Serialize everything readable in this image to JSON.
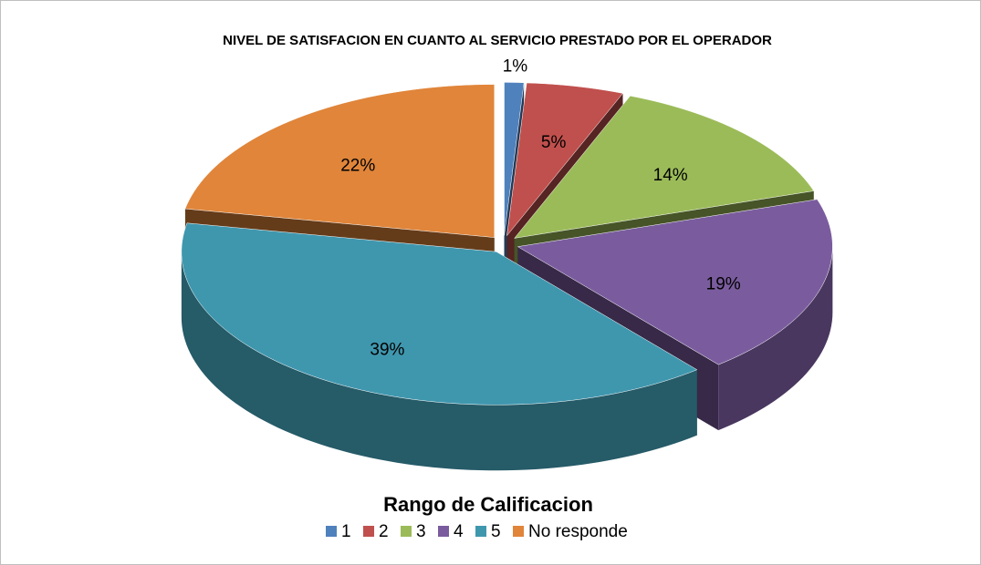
{
  "chart_data": {
    "type": "pie",
    "title": "NIVEL DE SATISFACION EN CUANTO AL SERVICIO PRESTADO POR EL OPERADOR",
    "legend_title": "Rango de Calificacion",
    "categories": [
      "1",
      "2",
      "3",
      "4",
      "5",
      "No responde"
    ],
    "values": [
      1,
      5,
      14,
      19,
      39,
      22
    ],
    "value_labels": [
      "1%",
      "5%",
      "14%",
      "19%",
      "39%",
      "22%"
    ],
    "colors": [
      "#4f81bd",
      "#c0504d",
      "#9bbb59",
      "#7a5c9e",
      "#3f97ae",
      "#e0853a"
    ],
    "legend": "bottom"
  }
}
